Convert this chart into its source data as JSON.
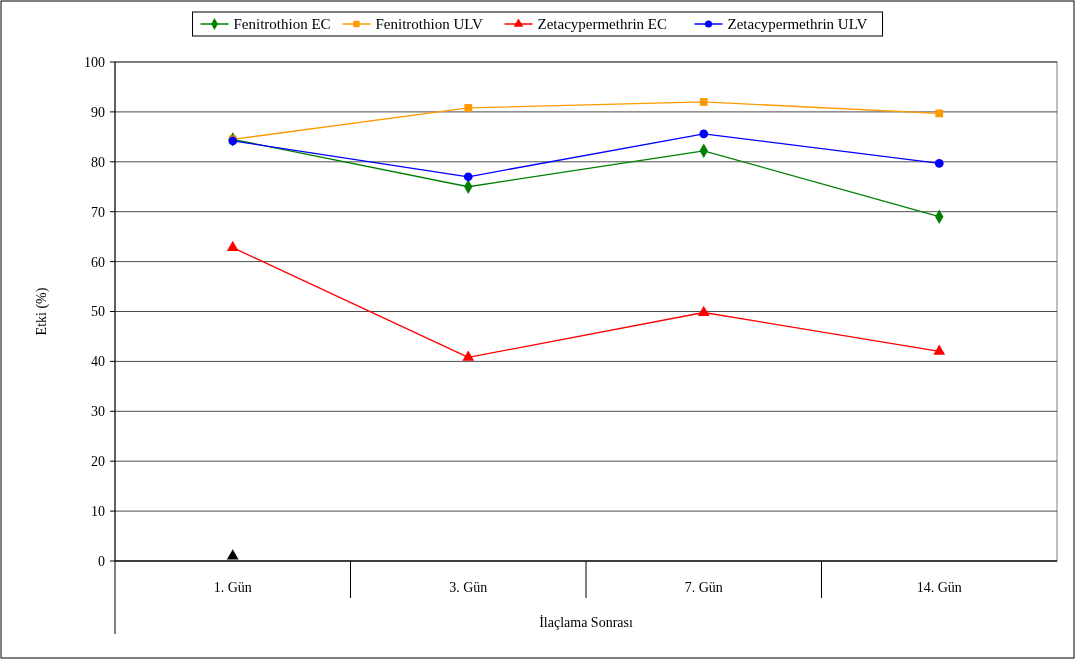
{
  "chart_data": {
    "type": "line",
    "xlabel": "İlaçlama Sonrası",
    "ylabel": "Etki (%)",
    "categories": [
      "1. Gün",
      "3. Gün",
      "7. Gün",
      "14. Gün"
    ],
    "ylim": [
      0,
      100
    ],
    "yticks": [
      0,
      10,
      20,
      30,
      40,
      50,
      60,
      70,
      80,
      90,
      100
    ],
    "grid": "y",
    "legend": "top",
    "series": [
      {
        "name": "Fenitrothion EC",
        "color": "#008000",
        "marker": "diamond",
        "values": [
          84.5,
          75,
          82.2,
          69
        ]
      },
      {
        "name": "Fenitrothion ULV",
        "color": "#ff9900",
        "marker": "square",
        "values": [
          84.5,
          90.8,
          92,
          89.7
        ]
      },
      {
        "name": "Zetacypermethrin EC",
        "color": "#ff0000",
        "marker": "triangle",
        "values": [
          62.8,
          40.8,
          49.8,
          42
        ]
      },
      {
        "name": "Zetacypermethrin ULV",
        "color": "#0000ff",
        "marker": "circle",
        "values": [
          84.2,
          77,
          85.6,
          79.7
        ]
      },
      {
        "type": "scatter",
        "color": "#000000",
        "marker": "triangle",
        "values": [
          1,
          null,
          null,
          null
        ]
      }
    ]
  }
}
